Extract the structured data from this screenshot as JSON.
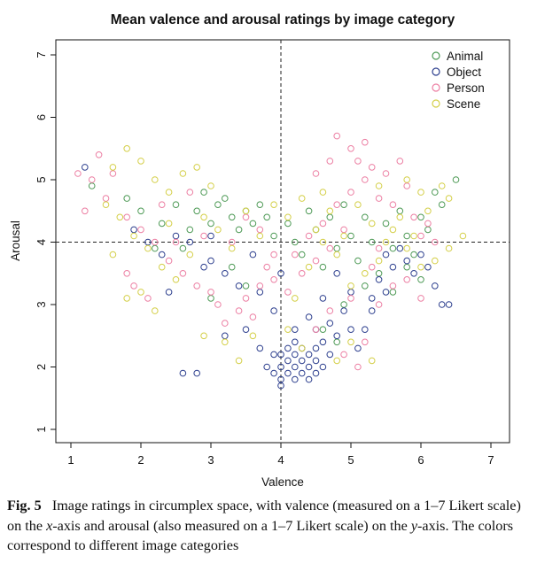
{
  "chart_data": {
    "type": "scatter",
    "title": "Mean valence and arousal ratings by image category",
    "xlabel": "Valence",
    "ylabel": "Arousal",
    "xlim": [
      1,
      7
    ],
    "ylim": [
      1,
      7
    ],
    "xticks": [
      "1",
      "2",
      "3",
      "4",
      "5",
      "6",
      "7"
    ],
    "yticks": [
      "1",
      "2",
      "3",
      "4",
      "5",
      "6",
      "7"
    ],
    "reference_lines": {
      "x": 4,
      "y": 4,
      "style": "dashed"
    },
    "grid": false,
    "legend_position": "top-right",
    "marker": "open-circle",
    "series": [
      {
        "name": "Animal",
        "color": "#4e9a56",
        "points": [
          [
            1.3,
            4.9
          ],
          [
            1.8,
            4.7
          ],
          [
            2.0,
            4.5
          ],
          [
            2.3,
            4.3
          ],
          [
            2.5,
            4.6
          ],
          [
            2.7,
            4.2
          ],
          [
            2.8,
            4.5
          ],
          [
            2.9,
            4.8
          ],
          [
            3.0,
            4.3
          ],
          [
            3.1,
            4.6
          ],
          [
            3.2,
            4.7
          ],
          [
            3.3,
            4.4
          ],
          [
            3.4,
            4.2
          ],
          [
            3.5,
            4.5
          ],
          [
            3.6,
            4.3
          ],
          [
            3.7,
            4.6
          ],
          [
            3.8,
            4.4
          ],
          [
            3.9,
            4.1
          ],
          [
            4.1,
            4.3
          ],
          [
            4.2,
            4.0
          ],
          [
            4.3,
            3.8
          ],
          [
            4.4,
            4.5
          ],
          [
            4.5,
            4.2
          ],
          [
            4.6,
            3.6
          ],
          [
            4.7,
            4.4
          ],
          [
            4.8,
            3.9
          ],
          [
            4.9,
            4.6
          ],
          [
            5.0,
            4.1
          ],
          [
            5.1,
            3.7
          ],
          [
            5.2,
            4.4
          ],
          [
            5.3,
            4.0
          ],
          [
            5.4,
            3.5
          ],
          [
            5.5,
            4.3
          ],
          [
            5.6,
            3.9
          ],
          [
            5.7,
            4.5
          ],
          [
            5.8,
            4.1
          ],
          [
            5.9,
            3.8
          ],
          [
            6.0,
            4.4
          ],
          [
            6.1,
            4.2
          ],
          [
            6.2,
            4.8
          ],
          [
            6.3,
            4.6
          ],
          [
            6.5,
            5.0
          ],
          [
            5.6,
            3.2
          ],
          [
            5.2,
            3.3
          ],
          [
            4.9,
            3.0
          ],
          [
            4.6,
            2.6
          ],
          [
            4.8,
            2.4
          ],
          [
            3.3,
            3.6
          ],
          [
            2.6,
            3.9
          ],
          [
            2.2,
            3.9
          ],
          [
            5.8,
            3.6
          ],
          [
            6.0,
            3.4
          ],
          [
            3.0,
            3.1
          ],
          [
            3.5,
            3.3
          ]
        ]
      },
      {
        "name": "Object",
        "color": "#2d3f8e",
        "points": [
          [
            1.2,
            5.2
          ],
          [
            1.9,
            4.2
          ],
          [
            2.1,
            4.0
          ],
          [
            2.3,
            3.8
          ],
          [
            2.5,
            4.1
          ],
          [
            2.7,
            4.0
          ],
          [
            2.9,
            3.6
          ],
          [
            3.0,
            4.1
          ],
          [
            2.6,
            1.9
          ],
          [
            2.8,
            1.9
          ],
          [
            2.4,
            3.2
          ],
          [
            3.2,
            2.5
          ],
          [
            3.5,
            2.6
          ],
          [
            3.7,
            2.3
          ],
          [
            3.8,
            2.0
          ],
          [
            3.9,
            2.2
          ],
          [
            3.9,
            1.9
          ],
          [
            4.0,
            1.8
          ],
          [
            4.0,
            2.0
          ],
          [
            4.0,
            2.2
          ],
          [
            4.0,
            1.7
          ],
          [
            4.1,
            1.9
          ],
          [
            4.1,
            2.1
          ],
          [
            4.1,
            2.3
          ],
          [
            4.2,
            1.8
          ],
          [
            4.2,
            2.0
          ],
          [
            4.2,
            2.2
          ],
          [
            4.2,
            2.4
          ],
          [
            4.3,
            1.9
          ],
          [
            4.3,
            2.1
          ],
          [
            4.3,
            2.3
          ],
          [
            4.4,
            1.8
          ],
          [
            4.4,
            2.0
          ],
          [
            4.4,
            2.2
          ],
          [
            4.5,
            1.9
          ],
          [
            4.5,
            2.1
          ],
          [
            4.5,
            2.3
          ],
          [
            4.5,
            2.6
          ],
          [
            4.6,
            2.0
          ],
          [
            4.6,
            2.4
          ],
          [
            4.7,
            2.2
          ],
          [
            4.7,
            2.7
          ],
          [
            4.8,
            2.5
          ],
          [
            4.9,
            2.9
          ],
          [
            5.0,
            2.6
          ],
          [
            5.1,
            2.3
          ],
          [
            5.2,
            2.6
          ],
          [
            5.3,
            3.1
          ],
          [
            5.4,
            3.4
          ],
          [
            5.5,
            3.8
          ],
          [
            5.6,
            3.6
          ],
          [
            5.7,
            3.9
          ],
          [
            5.8,
            3.7
          ],
          [
            5.9,
            3.5
          ],
          [
            6.0,
            3.8
          ],
          [
            6.1,
            3.6
          ],
          [
            6.2,
            3.3
          ],
          [
            6.3,
            3.0
          ],
          [
            6.4,
            3.0
          ],
          [
            5.5,
            3.2
          ],
          [
            5.3,
            2.9
          ],
          [
            5.0,
            3.2
          ],
          [
            4.8,
            3.5
          ],
          [
            4.6,
            3.1
          ],
          [
            4.4,
            2.8
          ],
          [
            4.2,
            2.6
          ],
          [
            3.9,
            2.9
          ],
          [
            3.7,
            3.2
          ],
          [
            3.4,
            3.3
          ],
          [
            3.2,
            3.5
          ],
          [
            3.0,
            3.7
          ],
          [
            3.6,
            3.8
          ],
          [
            4.0,
            3.5
          ]
        ]
      },
      {
        "name": "Person",
        "color": "#ec7fa3",
        "points": [
          [
            1.1,
            5.1
          ],
          [
            1.3,
            5.0
          ],
          [
            1.4,
            5.4
          ],
          [
            1.5,
            4.7
          ],
          [
            1.6,
            5.1
          ],
          [
            1.2,
            4.5
          ],
          [
            1.8,
            4.4
          ],
          [
            2.0,
            4.2
          ],
          [
            2.2,
            4.0
          ],
          [
            2.4,
            3.7
          ],
          [
            2.6,
            3.5
          ],
          [
            2.8,
            3.3
          ],
          [
            3.0,
            3.2
          ],
          [
            3.1,
            3.0
          ],
          [
            3.2,
            2.7
          ],
          [
            3.4,
            2.9
          ],
          [
            3.5,
            3.1
          ],
          [
            3.6,
            2.8
          ],
          [
            3.7,
            3.3
          ],
          [
            3.8,
            3.6
          ],
          [
            3.9,
            3.4
          ],
          [
            4.1,
            3.2
          ],
          [
            4.2,
            3.8
          ],
          [
            4.3,
            3.5
          ],
          [
            4.4,
            4.1
          ],
          [
            4.5,
            3.7
          ],
          [
            4.6,
            4.3
          ],
          [
            4.7,
            3.9
          ],
          [
            4.8,
            4.6
          ],
          [
            4.9,
            4.2
          ],
          [
            5.0,
            4.8
          ],
          [
            5.1,
            5.3
          ],
          [
            5.2,
            5.0
          ],
          [
            5.3,
            5.2
          ],
          [
            5.4,
            4.7
          ],
          [
            5.5,
            5.1
          ],
          [
            5.6,
            4.6
          ],
          [
            5.7,
            5.3
          ],
          [
            5.8,
            4.9
          ],
          [
            5.9,
            4.4
          ],
          [
            6.0,
            4.1
          ],
          [
            6.1,
            4.3
          ],
          [
            6.2,
            4.0
          ],
          [
            5.0,
            5.5
          ],
          [
            4.8,
            5.7
          ],
          [
            5.2,
            5.6
          ],
          [
            4.7,
            5.3
          ],
          [
            4.5,
            5.1
          ],
          [
            5.4,
            3.9
          ],
          [
            5.6,
            3.3
          ],
          [
            5.3,
            3.6
          ],
          [
            5.0,
            3.1
          ],
          [
            4.7,
            2.9
          ],
          [
            4.5,
            2.6
          ],
          [
            4.9,
            2.2
          ],
          [
            5.1,
            2.0
          ],
          [
            5.2,
            2.4
          ],
          [
            5.4,
            3.0
          ],
          [
            5.8,
            3.4
          ],
          [
            6.0,
            3.1
          ],
          [
            2.3,
            4.6
          ],
          [
            2.7,
            4.8
          ],
          [
            2.9,
            4.1
          ],
          [
            3.3,
            4.0
          ],
          [
            3.5,
            4.4
          ],
          [
            3.7,
            4.2
          ],
          [
            3.9,
            3.8
          ],
          [
            1.8,
            3.5
          ],
          [
            1.9,
            3.3
          ],
          [
            2.1,
            3.1
          ],
          [
            2.5,
            4.0
          ]
        ]
      },
      {
        "name": "Scene",
        "color": "#d4cf48",
        "points": [
          [
            1.6,
            5.2
          ],
          [
            1.8,
            5.5
          ],
          [
            2.0,
            5.3
          ],
          [
            2.2,
            5.0
          ],
          [
            2.4,
            4.8
          ],
          [
            2.6,
            5.1
          ],
          [
            2.8,
            5.2
          ],
          [
            3.0,
            4.9
          ],
          [
            1.5,
            4.6
          ],
          [
            1.7,
            4.4
          ],
          [
            1.9,
            4.1
          ],
          [
            2.1,
            3.9
          ],
          [
            2.3,
            3.6
          ],
          [
            2.5,
            3.4
          ],
          [
            1.8,
            3.1
          ],
          [
            2.0,
            3.2
          ],
          [
            2.2,
            2.9
          ],
          [
            1.6,
            3.8
          ],
          [
            2.4,
            4.3
          ],
          [
            2.7,
            3.8
          ],
          [
            2.9,
            4.4
          ],
          [
            3.1,
            4.2
          ],
          [
            3.3,
            3.9
          ],
          [
            3.5,
            4.5
          ],
          [
            3.7,
            4.1
          ],
          [
            3.9,
            4.6
          ],
          [
            4.1,
            4.4
          ],
          [
            4.3,
            4.7
          ],
          [
            4.5,
            4.2
          ],
          [
            4.7,
            4.5
          ],
          [
            4.9,
            4.1
          ],
          [
            5.1,
            4.6
          ],
          [
            5.3,
            4.3
          ],
          [
            5.5,
            4.0
          ],
          [
            5.7,
            4.4
          ],
          [
            5.9,
            4.1
          ],
          [
            6.1,
            4.5
          ],
          [
            6.3,
            4.9
          ],
          [
            6.4,
            4.7
          ],
          [
            6.6,
            4.1
          ],
          [
            6.4,
            3.9
          ],
          [
            6.2,
            3.7
          ],
          [
            6.0,
            3.6
          ],
          [
            5.8,
            3.9
          ],
          [
            5.6,
            4.2
          ],
          [
            5.4,
            3.7
          ],
          [
            5.2,
            3.5
          ],
          [
            5.0,
            3.3
          ],
          [
            4.8,
            3.8
          ],
          [
            4.6,
            4.0
          ],
          [
            4.4,
            3.6
          ],
          [
            4.2,
            3.1
          ],
          [
            3.6,
            2.5
          ],
          [
            3.4,
            2.1
          ],
          [
            3.2,
            2.4
          ],
          [
            4.1,
            2.6
          ],
          [
            4.3,
            2.3
          ],
          [
            4.8,
            2.1
          ],
          [
            5.0,
            2.4
          ],
          [
            5.3,
            2.1
          ],
          [
            2.9,
            2.5
          ],
          [
            4.6,
            4.8
          ],
          [
            5.4,
            4.9
          ],
          [
            5.8,
            5.0
          ],
          [
            6.0,
            4.8
          ]
        ]
      }
    ]
  },
  "caption": {
    "label": "Fig. 5",
    "text": "Image ratings in circumplex space, with valence (measured on a 1–7 Likert scale) on the x-axis and arousal (also measured on a 1–7 Likert scale) on the y-axis. The colors correspond to different image categories"
  }
}
